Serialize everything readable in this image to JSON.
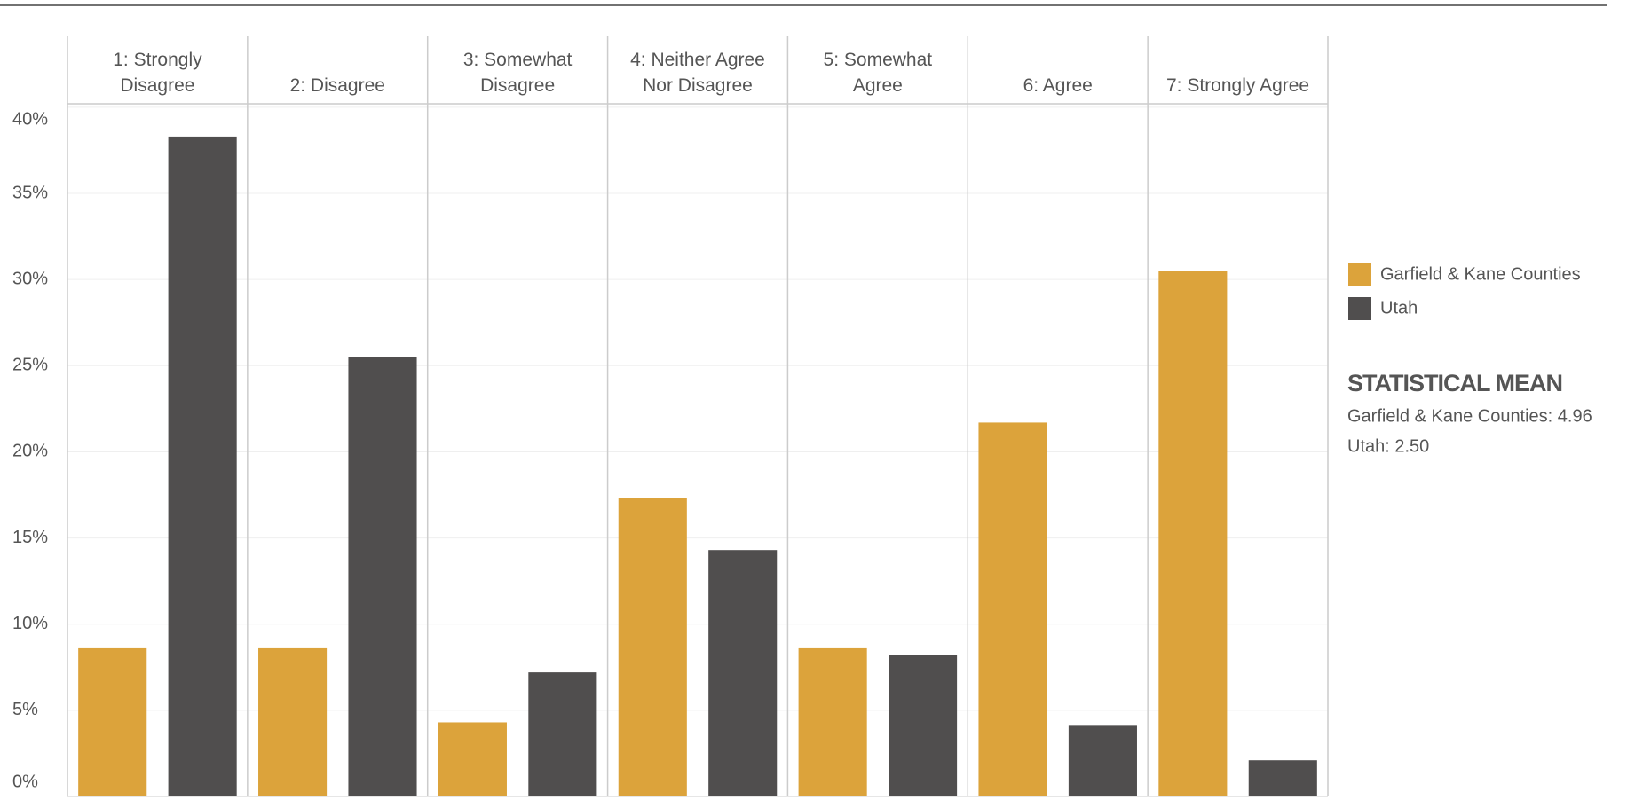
{
  "chart_data": {
    "type": "bar",
    "categories": [
      "1: Strongly\nDisagree",
      "2: Disagree",
      "3: Somewhat\nDisagree",
      "4: Neither Agree\nNor Disagree",
      "5: Somewhat\nAgree",
      "6: Agree",
      "7: Strongly Agree"
    ],
    "series": [
      {
        "name": "Garfield & Kane Counties",
        "color": "#dca33b",
        "values": [
          8.6,
          8.6,
          4.3,
          17.3,
          8.6,
          21.7,
          30.5
        ]
      },
      {
        "name": "Utah",
        "color": "#504e4e",
        "values": [
          38.3,
          25.5,
          7.2,
          14.3,
          8.2,
          4.1,
          2.1
        ]
      }
    ],
    "ylim": [
      0,
      40.2
    ],
    "yticks": [
      {
        "value": 0,
        "label": "0%"
      },
      {
        "value": 5,
        "label": "5%"
      },
      {
        "value": 10,
        "label": "10%"
      },
      {
        "value": 15,
        "label": "15%"
      },
      {
        "value": 20,
        "label": "20%"
      },
      {
        "value": 25,
        "label": "25%"
      },
      {
        "value": 30,
        "label": "30%"
      },
      {
        "value": 35,
        "label": "35%"
      },
      {
        "value": 40,
        "label": "40%"
      }
    ],
    "grid": true,
    "legend": "right",
    "annotations": {
      "title": "STATISTICAL MEAN",
      "lines": [
        "Garfield & Kane Counties: 4.96",
        "Utah: 2.50"
      ]
    }
  }
}
